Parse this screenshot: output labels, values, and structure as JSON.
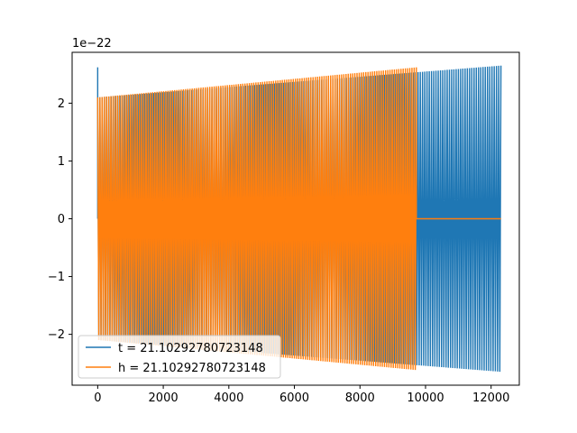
{
  "chart_data": {
    "type": "line",
    "title": "",
    "xlabel": "",
    "ylabel": "",
    "y_offset_label": "1e−22",
    "xlim": [
      -780,
      12860
    ],
    "ylim": [
      -2.88,
      2.88
    ],
    "xticks": [
      0,
      2000,
      4000,
      6000,
      8000,
      10000,
      12000
    ],
    "xtick_labels": [
      "0",
      "2000",
      "4000",
      "6000",
      "8000",
      "10000",
      "12000"
    ],
    "yticks": [
      -2,
      -1,
      0,
      1,
      2
    ],
    "ytick_labels": [
      "−2",
      "−1",
      "0",
      "1",
      "2"
    ],
    "grid": false,
    "legend_position": "lower-left",
    "series": [
      {
        "name": "t = 21.10292780723148",
        "color": "#1f77b4",
        "kind": "oscillation",
        "x_start": 0,
        "x_end": 12300,
        "amplitude_start": 2.1,
        "amplitude_end": 2.65,
        "initial_spike": 2.62,
        "cycles": 180
      },
      {
        "name": "h = 21.10292780723148",
        "color": "#ff7f0e",
        "kind": "oscillation_then_flat",
        "x_start": 0,
        "x_end": 9720,
        "flat_end": 12300,
        "flat_value": 0,
        "amplitude_start": 2.1,
        "amplitude_end": 2.62,
        "cycles": 145
      }
    ]
  }
}
